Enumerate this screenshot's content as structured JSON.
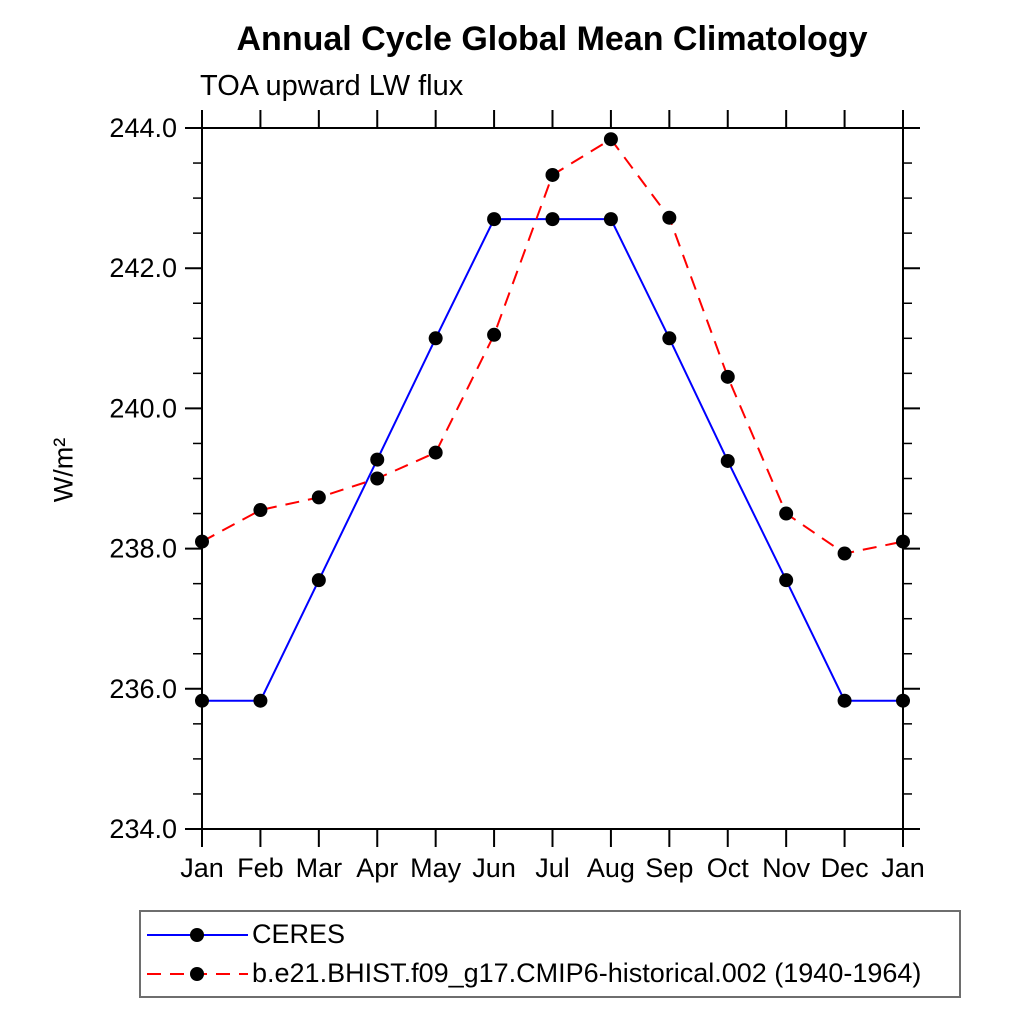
{
  "title": "Annual Cycle Global Mean Climatology",
  "subtitle": "TOA upward LW flux",
  "colors": {
    "ceres_line": "#0000ff",
    "model_line": "#ff0000",
    "marker": "#000000",
    "axis": "#000000",
    "legend_border": "#6e6e6e",
    "background": "#ffffff"
  },
  "chart_data": {
    "type": "line",
    "title": "Annual Cycle Global Mean Climatology",
    "subtitle": "TOA upward LW flux",
    "xlabel": "",
    "ylabel": "W/m²",
    "categories": [
      "Jan",
      "Feb",
      "Mar",
      "Apr",
      "May",
      "Jun",
      "Jul",
      "Aug",
      "Sep",
      "Oct",
      "Nov",
      "Dec",
      "Jan"
    ],
    "ylim": [
      234.0,
      244.0
    ],
    "ytick_major": [
      234.0,
      236.0,
      238.0,
      240.0,
      242.0,
      244.0
    ],
    "ytick_labels": [
      "234.0",
      "236.0",
      "238.0",
      "240.0",
      "242.0",
      "244.0"
    ],
    "ytick_minor_step": 0.5,
    "grid": false,
    "legend_position": "bottom-left",
    "marker": "filled-circle",
    "series": [
      {
        "name": "CERES",
        "color": "#0000ff",
        "style": "solid",
        "values": [
          235.83,
          235.83,
          237.55,
          239.27,
          241.0,
          242.7,
          242.7,
          242.7,
          241.0,
          239.25,
          237.55,
          235.83,
          235.83
        ]
      },
      {
        "name": "b.e21.BHIST.f09_g17.CMIP6-historical.002 (1940-1964)",
        "color": "#ff0000",
        "style": "dashed",
        "values": [
          238.1,
          238.55,
          238.73,
          239.0,
          239.37,
          241.05,
          243.33,
          243.84,
          242.72,
          240.45,
          238.5,
          237.93,
          238.1
        ]
      }
    ]
  }
}
